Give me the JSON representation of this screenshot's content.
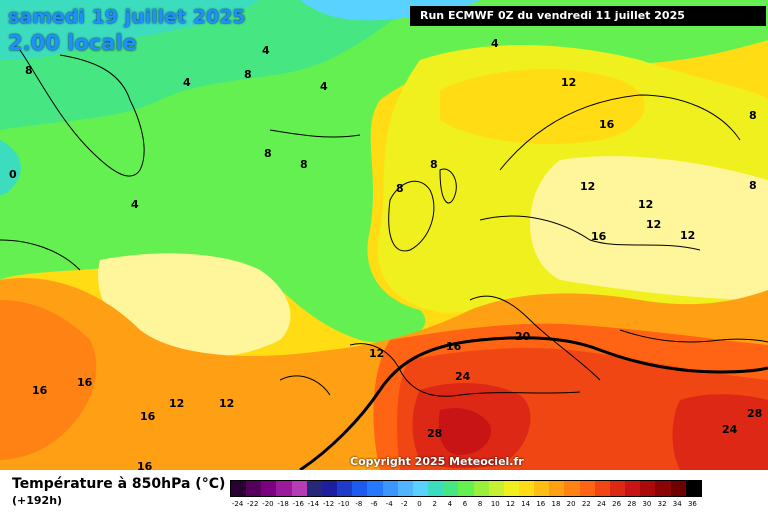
{
  "header": {
    "date": "samedi 19 juillet 2025",
    "time": "2.00 locale",
    "run": "Run ECMWF 0Z du vendredi 11 juillet 2025"
  },
  "footer": {
    "variable": "Température à 850hPa (°C)",
    "lead": "(+192h)",
    "copyright": "Copyright 2025 Meteociel.fr"
  },
  "legend": {
    "labels": [
      "-24",
      "-22",
      "-20",
      "-18",
      "-16",
      "-14",
      "-12",
      "-10",
      "-8",
      "-6",
      "-4",
      "-2",
      "0",
      "2",
      "4",
      "6",
      "8",
      "10",
      "12",
      "14",
      "16",
      "18",
      "20",
      "22",
      "24",
      "26",
      "28",
      "30",
      "32",
      "34",
      "36"
    ],
    "colors": [
      "#2a0033",
      "#55005a",
      "#7a0080",
      "#9b199b",
      "#b43cb4",
      "#282878",
      "#1e1ea0",
      "#1e3cc8",
      "#1e5af0",
      "#2878ff",
      "#3c96ff",
      "#50b4ff",
      "#5ad2ff",
      "#3cdcbe",
      "#46e682",
      "#64f050",
      "#96f03c",
      "#c8f032",
      "#f0f01e",
      "#ffdc14",
      "#ffbe14",
      "#ffa014",
      "#ff8214",
      "#ff6414",
      "#f04614",
      "#dc2814",
      "#c81414",
      "#aa0a0a",
      "#8c0505",
      "#6e0000",
      "#000000"
    ]
  },
  "map": {
    "isotherm_labels": [
      "4",
      "4",
      "4",
      "4",
      "8",
      "8",
      "8",
      "8",
      "8",
      "8",
      "4",
      "0",
      "12",
      "16",
      "12",
      "12",
      "12",
      "12",
      "8",
      "8",
      "16",
      "16",
      "16",
      "12",
      "12",
      "12",
      "16",
      "20",
      "24",
      "28",
      "28",
      "24",
      "16",
      "16"
    ]
  }
}
